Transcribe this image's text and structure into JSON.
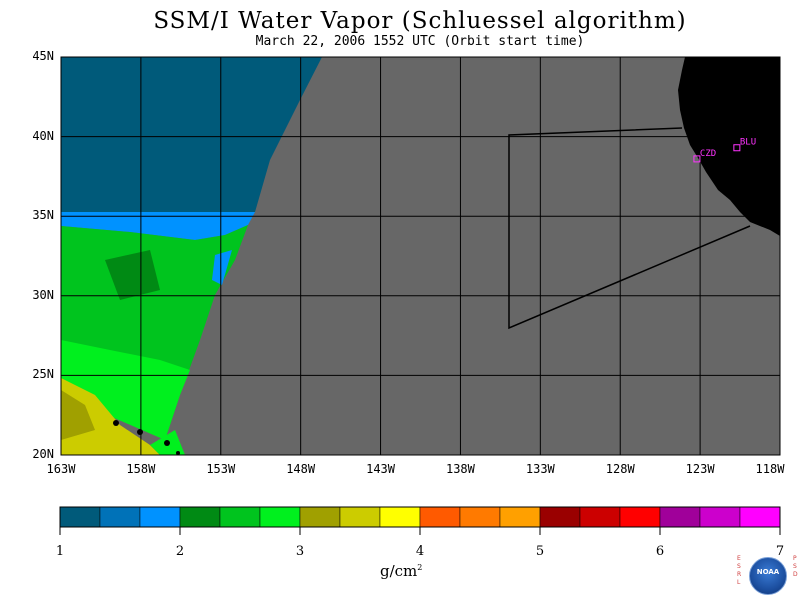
{
  "title": "SSM/I Water Vapor (Schluessel algorithm)",
  "subtitle": "March 22, 2006  1552 UTC  (Orbit start time)",
  "map": {
    "lat_range": [
      20,
      45
    ],
    "lon_range": [
      -163,
      -118
    ],
    "lat_ticks": [
      "45N",
      "40N",
      "35N",
      "30N",
      "25N",
      "20N"
    ],
    "lon_ticks": [
      "163W",
      "158W",
      "153W",
      "148W",
      "143W",
      "138W",
      "133W",
      "128W",
      "123W",
      "118W"
    ],
    "stations": [
      {
        "label": "CZD",
        "lat": 38.6,
        "lon": -123.2
      },
      {
        "label": "BLU",
        "lat": 39.3,
        "lon": -120.7
      }
    ],
    "colors": {
      "no_data": "#676767",
      "land": "#000000",
      "grid": "#000000",
      "station": "#ff33ff"
    }
  },
  "colorbar": {
    "labels": [
      "1",
      "2",
      "3",
      "4",
      "5",
      "6",
      "7"
    ],
    "units": "g/cm",
    "units_sup": "2",
    "colors": [
      "#005a7a",
      "#0072b8",
      "#0092ff",
      "#008a14",
      "#00c41e",
      "#00f01e",
      "#a0a000",
      "#cccc00",
      "#ffff00",
      "#ff5a00",
      "#ff7a00",
      "#ffa000",
      "#9a0000",
      "#cc0000",
      "#ff0000",
      "#a0009a",
      "#cc00cc",
      "#ff00ff"
    ]
  },
  "logo": {
    "left_letters": "E\nS\nR\nL",
    "right_letters": "P\nS\nD",
    "name": "NOAA"
  }
}
